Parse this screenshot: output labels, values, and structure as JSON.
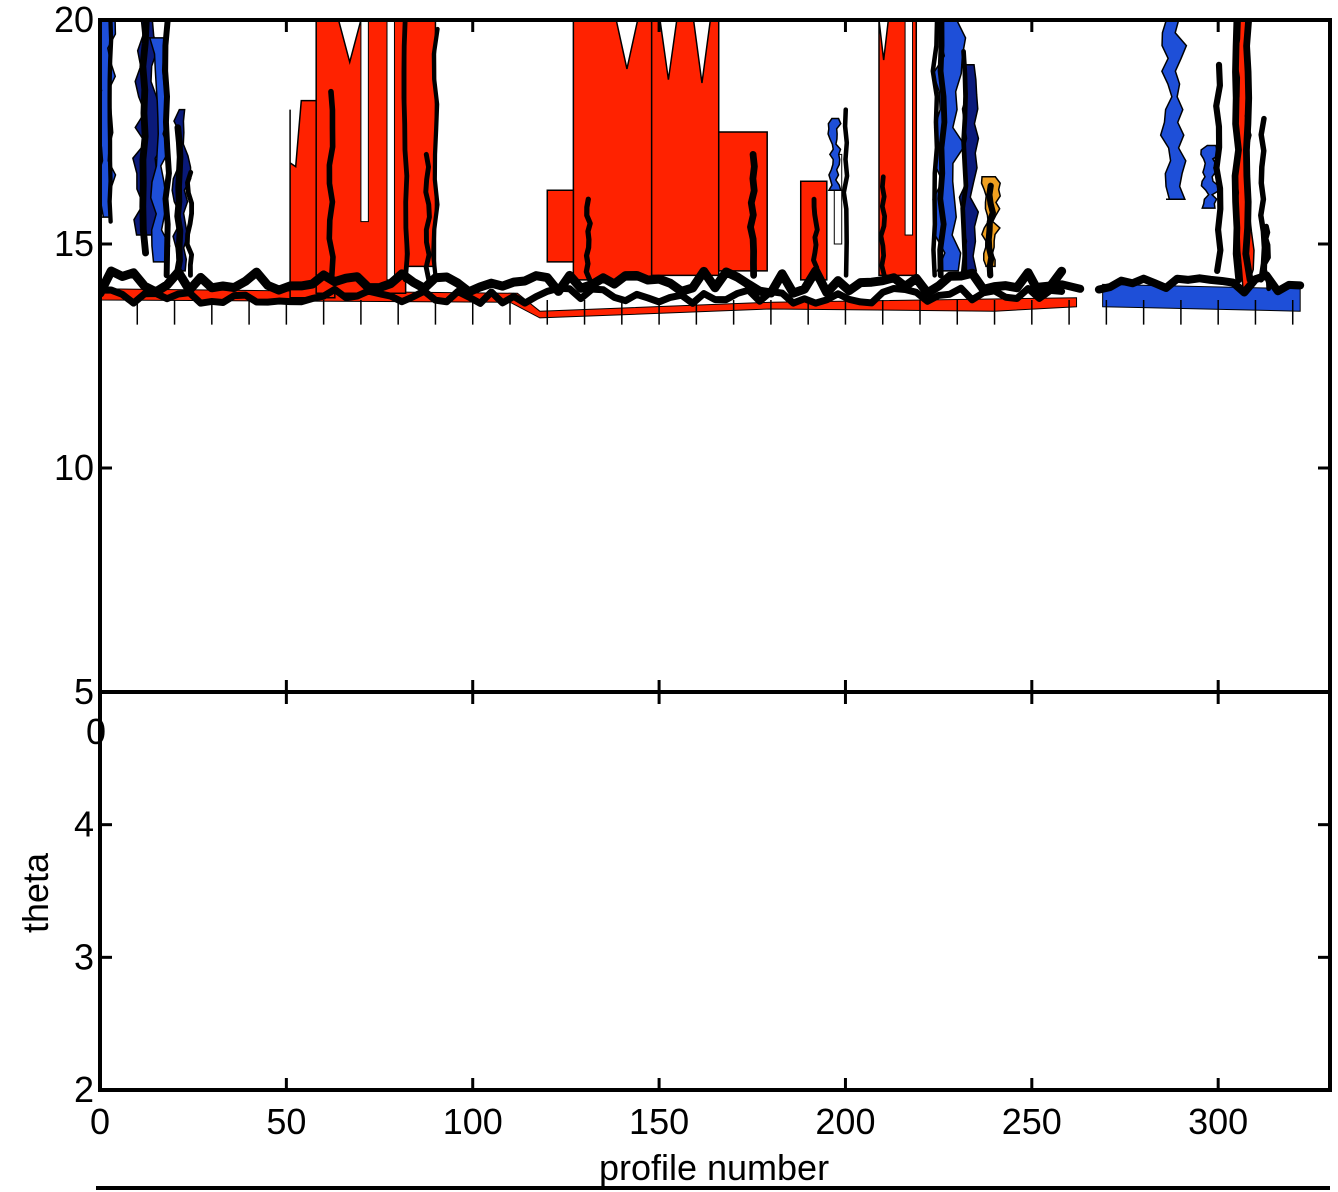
{
  "chart_data": [
    {
      "type": "heatmap",
      "panel": "top",
      "title": "",
      "xlabel": "",
      "ylabel": "",
      "xlim": [
        0,
        330
      ],
      "ylim": [
        5,
        20
      ],
      "xticks": [
        0,
        50,
        100,
        150,
        200,
        250,
        300
      ],
      "yticks": [
        5,
        10,
        15,
        20
      ],
      "ytick_labels": [
        "5",
        "10",
        "15",
        "20"
      ],
      "filled_regions": [
        {
          "x": [
            55,
            82
          ],
          "y": [
            13.8,
            20
          ],
          "fill": "red"
        },
        {
          "x": [
            129,
            166
          ],
          "y": [
            14.2,
            20
          ],
          "fill": "red"
        },
        {
          "x": [
            212,
            219
          ],
          "y": [
            14.3,
            20
          ],
          "fill": "red"
        },
        {
          "x": [
            305,
            310
          ],
          "y": [
            14.0,
            20
          ],
          "fill": "red"
        },
        {
          "x": [
            0,
            5
          ],
          "y": [
            15.5,
            20
          ],
          "fill": "blue"
        },
        {
          "x": [
            10,
            20
          ],
          "y": [
            15.0,
            20
          ],
          "fill": "blue"
        },
        {
          "x": [
            224,
            234
          ],
          "y": [
            14.5,
            20
          ],
          "fill": "blue"
        },
        {
          "x": [
            287,
            294
          ],
          "y": [
            16.0,
            20
          ],
          "fill": "blue"
        }
      ],
      "band": {
        "x": [
          0,
          322
        ],
        "y": [
          13.4,
          14.4
        ],
        "note": "dense contour band near theta 14"
      }
    },
    {
      "type": "heatmap",
      "panel": "bottom",
      "title": "",
      "xlabel": "profile number",
      "ylabel": "theta",
      "xlim": [
        0,
        330
      ],
      "ylim": [
        2,
        5
      ],
      "xticks": [
        0,
        50,
        100,
        150,
        200,
        250,
        300
      ],
      "xtick_labels": [
        "0",
        "50",
        "100",
        "150",
        "200",
        "250",
        "300"
      ],
      "yticks": [
        2,
        3,
        4
      ],
      "ytick_labels": [
        "2",
        "3",
        "4"
      ],
      "overlap_label": "0",
      "values": []
    }
  ],
  "colors": {
    "red_fill": "#ff2200",
    "blue_fill": "#1e4fd8",
    "dark_blue": "#0a1a7a",
    "orange": "#f0a020",
    "contour_line": "#000000",
    "axis": "#000000"
  }
}
